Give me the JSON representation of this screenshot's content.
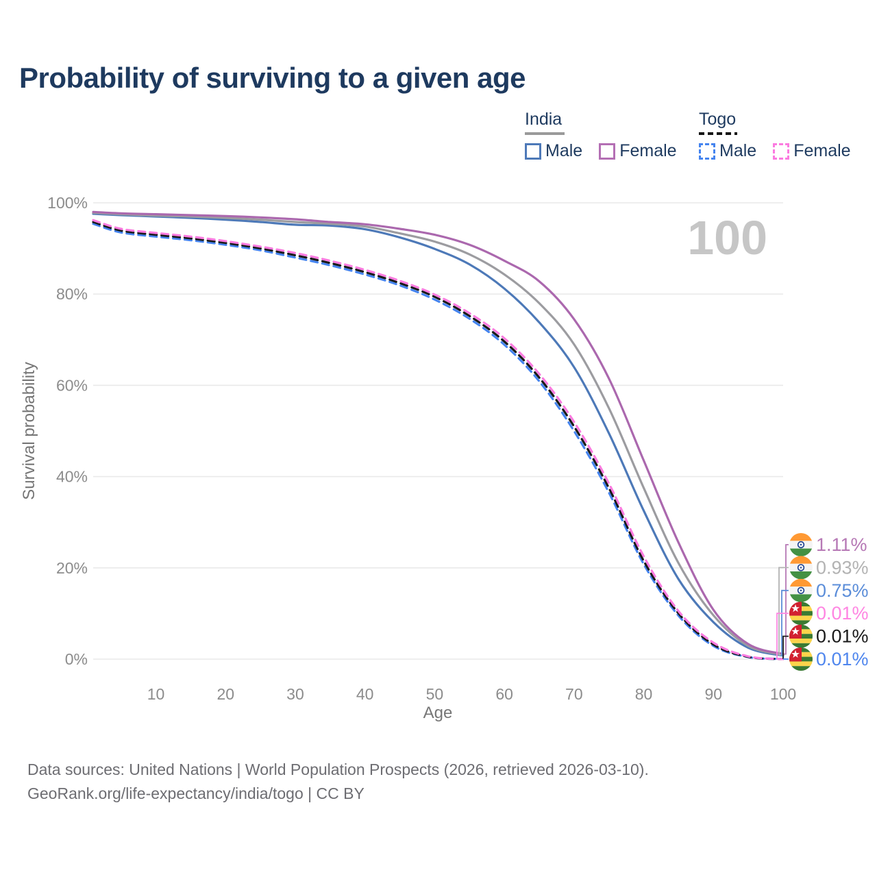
{
  "title": "Probability of surviving to a given age",
  "legend": {
    "groups": [
      {
        "label": "India",
        "line_style": "solid",
        "underline_color": "#9a9a9a",
        "items": [
          {
            "label": "Male",
            "color": "#4d79b8"
          },
          {
            "label": "Female",
            "color": "#b46fb4"
          }
        ]
      },
      {
        "label": "Togo",
        "line_style": "dashed",
        "underline_color": "#141414",
        "items": [
          {
            "label": "Male",
            "color": "#4584ef"
          },
          {
            "label": "Female",
            "color": "#fb7be0"
          }
        ]
      }
    ]
  },
  "chart_data": {
    "type": "line",
    "title": "Probability of surviving to a given age",
    "xlabel": "Age",
    "ylabel": "Survival probability",
    "xlim": [
      1,
      100
    ],
    "ylim": [
      0,
      100
    ],
    "grid": "horizontal-only",
    "legend_position": "top-right",
    "hover_age_watermark": "100",
    "x_ticks": [
      10,
      20,
      30,
      40,
      50,
      60,
      70,
      80,
      90,
      100
    ],
    "y_ticks": [
      {
        "value": 0,
        "label": "0%"
      },
      {
        "value": 20,
        "label": "20%"
      },
      {
        "value": 40,
        "label": "40%"
      },
      {
        "value": 60,
        "label": "60%"
      },
      {
        "value": 80,
        "label": "80%"
      },
      {
        "value": 100,
        "label": "100%"
      }
    ],
    "ages": [
      1,
      5,
      10,
      15,
      20,
      25,
      30,
      35,
      40,
      45,
      50,
      55,
      60,
      65,
      70,
      75,
      80,
      85,
      90,
      95,
      100
    ],
    "series": [
      {
        "id": "india-male",
        "name": "India Male",
        "country": "India",
        "sex": "Male",
        "style": "solid",
        "color": "#4d79b8",
        "flag": "india",
        "end_value_at_100": "0.75%",
        "end_label_color": "#5b8dd9",
        "values": [
          97.6,
          97.3,
          97.0,
          96.7,
          96.3,
          95.8,
          95.2,
          95.0,
          94.2,
          92.4,
          89.9,
          86.5,
          81.2,
          73.8,
          64.0,
          49.5,
          32.5,
          17.5,
          8.1,
          2.5,
          0.75
        ]
      },
      {
        "id": "india-total",
        "name": "India Total",
        "country": "India",
        "sex": "Both",
        "style": "solid",
        "color": "#9c9ca0",
        "flag": "india",
        "end_value_at_100": "0.93%",
        "end_label_color": "#b3b3b3",
        "values": [
          97.8,
          97.5,
          97.2,
          97.0,
          96.7,
          96.3,
          95.8,
          95.4,
          94.8,
          93.3,
          91.5,
          88.7,
          84.3,
          78.0,
          69.0,
          55.0,
          37.5,
          21.0,
          9.6,
          2.9,
          0.93
        ]
      },
      {
        "id": "india-female",
        "name": "India Female",
        "country": "India",
        "sex": "Female",
        "style": "solid",
        "color": "#ab68ae",
        "flag": "india",
        "end_value_at_100": "1.11%",
        "end_label_color": "#b678b5",
        "values": [
          98.0,
          97.7,
          97.5,
          97.3,
          97.1,
          96.8,
          96.4,
          95.8,
          95.3,
          94.3,
          93.0,
          90.8,
          87.3,
          82.8,
          74.5,
          61.5,
          43.5,
          25.5,
          10.8,
          3.3,
          1.11
        ]
      },
      {
        "id": "togo-male",
        "name": "Togo Male",
        "country": "Togo",
        "sex": "Male",
        "style": "dashed",
        "color": "#4584ef",
        "flag": "togo",
        "end_value_at_100": "0.01%",
        "end_label_color": "#4f86ee",
        "values": [
          95.4,
          93.5,
          92.6,
          91.8,
          90.8,
          89.6,
          88.0,
          86.3,
          84.3,
          81.9,
          78.8,
          74.6,
          68.9,
          60.9,
          50.0,
          36.5,
          20.8,
          9.5,
          2.9,
          0.45,
          0.01
        ]
      },
      {
        "id": "togo-total",
        "name": "Togo Total",
        "country": "Togo",
        "sex": "Both",
        "style": "dashed",
        "color": "#1a1a1a",
        "flag": "togo",
        "end_value_at_100": "0.01%",
        "end_label_color": "#1a1a1a",
        "values": [
          95.8,
          93.9,
          93.0,
          92.2,
          91.2,
          90.0,
          88.5,
          86.8,
          84.8,
          82.4,
          79.4,
          75.2,
          69.6,
          61.7,
          51.0,
          37.5,
          21.5,
          10.0,
          3.2,
          0.5,
          0.01
        ]
      },
      {
        "id": "togo-female",
        "name": "Togo Female",
        "country": "Togo",
        "sex": "Female",
        "style": "dashed",
        "color": "#fb7be0",
        "flag": "togo",
        "end_value_at_100": "0.01%",
        "end_label_color": "#ff85e2",
        "values": [
          96.2,
          94.3,
          93.4,
          92.6,
          91.6,
          90.4,
          89.0,
          87.3,
          85.3,
          82.9,
          79.9,
          75.8,
          70.3,
          62.5,
          52.0,
          38.5,
          22.5,
          10.5,
          3.6,
          0.6,
          0.01
        ]
      }
    ],
    "end_label_order": [
      "india-female",
      "india-total",
      "india-male",
      "togo-female",
      "togo-total",
      "togo-male"
    ]
  },
  "footer": {
    "line1": "Data sources: United Nations | World Population Prospects (2026, retrieved 2026-03-10).",
    "line2": "GeoRank.org/life-expectancy/india/togo | CC BY"
  }
}
